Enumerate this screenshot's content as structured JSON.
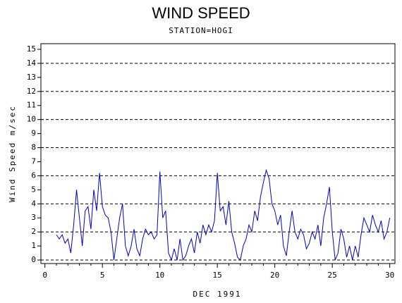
{
  "chart_data": {
    "type": "line",
    "title": "WIND SPEED",
    "subtitle": "STATION=HOGI",
    "xlabel": "DEC 1991",
    "ylabel": "Wind Speed m/sec",
    "xlim": [
      -0.35,
      30.45
    ],
    "ylim": [
      -0.25,
      15.4
    ],
    "xticks": [
      0,
      5,
      10,
      15,
      20,
      25,
      30
    ],
    "xminorticks": [
      1,
      2,
      3,
      4,
      6,
      7,
      8,
      9,
      11,
      12,
      13,
      14,
      16,
      17,
      18,
      19,
      21,
      22,
      23,
      24,
      26,
      27,
      28,
      29
    ],
    "yticks": [
      0,
      1,
      2,
      3,
      4,
      5,
      6,
      7,
      8,
      9,
      10,
      11,
      12,
      13,
      14,
      15
    ],
    "ygrid": [
      0,
      2,
      4,
      6,
      8,
      10,
      12,
      14
    ],
    "x": [
      1,
      1.25,
      1.5,
      1.75,
      2,
      2.25,
      2.5,
      2.75,
      3,
      3.25,
      3.5,
      3.75,
      4,
      4.25,
      4.5,
      4.75,
      5,
      5.25,
      5.5,
      5.75,
      6,
      6.25,
      6.5,
      6.75,
      7,
      7.25,
      7.5,
      7.75,
      8,
      8.25,
      8.5,
      8.75,
      9,
      9.25,
      9.5,
      9.75,
      10,
      10.25,
      10.5,
      10.75,
      11,
      11.25,
      11.5,
      11.75,
      12,
      12.25,
      12.5,
      12.75,
      13,
      13.25,
      13.5,
      13.75,
      14,
      14.25,
      14.5,
      14.75,
      15,
      15.25,
      15.5,
      15.75,
      16,
      16.25,
      16.5,
      16.75,
      17,
      17.25,
      17.5,
      17.75,
      18,
      18.25,
      18.5,
      18.75,
      19,
      19.25,
      19.5,
      19.75,
      20,
      20.25,
      20.5,
      20.75,
      21,
      21.25,
      21.5,
      21.75,
      22,
      22.25,
      22.5,
      22.75,
      23,
      23.25,
      23.5,
      23.75,
      24,
      24.25,
      24.5,
      24.75,
      25,
      25.25,
      25.5,
      25.75,
      26,
      26.25,
      26.5,
      26.75,
      27,
      27.25,
      27.5,
      27.75,
      28,
      28.25,
      28.5,
      28.75,
      29,
      29.25,
      29.5,
      29.75,
      30
    ],
    "series": [
      {
        "name": "Wind Speed",
        "color": "#0000cc",
        "values": [
          1.8,
          1.5,
          1.8,
          1.2,
          1.5,
          0.5,
          2.5,
          5.0,
          3.0,
          1.0,
          3.5,
          3.8,
          2.2,
          5.0,
          3.5,
          6.2,
          3.8,
          3.2,
          3.0,
          2.0,
          0.0,
          1.5,
          3.0,
          4.0,
          1.0,
          0.3,
          1.0,
          2.2,
          0.8,
          0.3,
          1.5,
          2.2,
          1.8,
          2.0,
          1.5,
          1.8,
          6.3,
          3.0,
          3.5,
          0.5,
          0.0,
          0.8,
          0.0,
          1.5,
          0.0,
          0.3,
          1.0,
          1.5,
          0.5,
          2.0,
          1.2,
          2.5,
          1.8,
          2.5,
          2.0,
          2.8,
          6.2,
          3.5,
          3.8,
          2.5,
          4.2,
          2.0,
          1.2,
          0.2,
          0.0,
          1.0,
          1.5,
          2.5,
          2.0,
          3.5,
          2.8,
          4.5,
          5.5,
          6.4,
          5.8,
          4.0,
          3.5,
          2.5,
          3.2,
          1.0,
          0.3,
          2.0,
          3.5,
          2.0,
          1.5,
          2.2,
          1.8,
          0.8,
          1.2,
          2.0,
          1.5,
          2.5,
          1.0,
          3.0,
          4.0,
          5.2,
          2.0,
          0.0,
          0.5,
          2.2,
          1.5,
          0.2,
          1.0,
          0.0,
          1.0,
          0.2,
          1.8,
          3.0,
          2.5,
          2.0,
          3.2,
          2.5,
          2.0,
          2.8,
          1.5,
          2.0,
          3.0
        ]
      }
    ]
  }
}
